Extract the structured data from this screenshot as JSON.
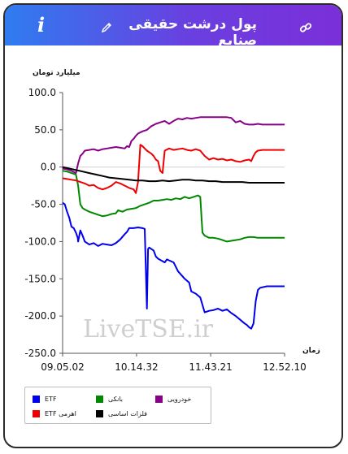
{
  "header": {
    "title": "پول درشت حقیقی صنایع",
    "info_label": "i",
    "edit_icon": "pencil-icon",
    "share_icon": "link-icon"
  },
  "watermark": "LiveTSE.ir",
  "chart_data": {
    "type": "line",
    "ylabel": "میلیارد تومان",
    "xlabel": "زمان",
    "ylim": [
      -250,
      100
    ],
    "yticks": [
      "100.0",
      "50.0",
      "0.0",
      "-50.0",
      "-100.0",
      "-150.0",
      "-200.0",
      "-250.0"
    ],
    "xticks": [
      "09.05.02",
      "10.14.32",
      "11.43.21",
      "12.52.10"
    ],
    "xlim": [
      0,
      100
    ],
    "grid": false,
    "legend_position": "bottom-left",
    "series": [
      {
        "name": "ETF",
        "color": "#0000ee",
        "points": [
          [
            0,
            -48
          ],
          [
            1,
            -50
          ],
          [
            2,
            -60
          ],
          [
            3,
            -68
          ],
          [
            4,
            -80
          ],
          [
            5,
            -82
          ],
          [
            6,
            -88
          ],
          [
            6.8,
            -95
          ],
          [
            7,
            -100
          ],
          [
            8,
            -85
          ],
          [
            9,
            -92
          ],
          [
            10,
            -100
          ],
          [
            12,
            -104
          ],
          [
            14,
            -102
          ],
          [
            16,
            -106
          ],
          [
            18,
            -103
          ],
          [
            20,
            -104
          ],
          [
            22,
            -105
          ],
          [
            24,
            -102
          ],
          [
            26,
            -97
          ],
          [
            28,
            -90
          ],
          [
            29,
            -87
          ],
          [
            30,
            -82
          ],
          [
            32,
            -82
          ],
          [
            34,
            -81
          ],
          [
            36,
            -82
          ],
          [
            37,
            -83
          ],
          [
            38,
            -190
          ],
          [
            38.5,
            -110
          ],
          [
            39,
            -108
          ],
          [
            41,
            -112
          ],
          [
            42,
            -120
          ],
          [
            43,
            -123
          ],
          [
            46,
            -128
          ],
          [
            47,
            -124
          ],
          [
            50,
            -128
          ],
          [
            52,
            -140
          ],
          [
            55,
            -150
          ],
          [
            57,
            -155
          ],
          [
            58,
            -167
          ],
          [
            60,
            -170
          ],
          [
            62,
            -175
          ],
          [
            64,
            -195
          ],
          [
            66,
            -193
          ],
          [
            68,
            -192
          ],
          [
            70,
            -190
          ],
          [
            72,
            -193
          ],
          [
            74,
            -191
          ],
          [
            76,
            -196
          ],
          [
            78,
            -200
          ],
          [
            80,
            -205
          ],
          [
            82,
            -210
          ],
          [
            83,
            -212
          ],
          [
            84,
            -215
          ],
          [
            85,
            -217
          ],
          [
            86,
            -210
          ],
          [
            87,
            -180
          ],
          [
            88,
            -165
          ],
          [
            89,
            -162
          ],
          [
            92,
            -160
          ],
          [
            95,
            -160
          ],
          [
            100,
            -160
          ]
        ]
      },
      {
        "name": "بانکی",
        "color": "#008800",
        "points": [
          [
            0,
            -5
          ],
          [
            2,
            -6
          ],
          [
            4,
            -8
          ],
          [
            6,
            -10
          ],
          [
            7,
            -25
          ],
          [
            8,
            -50
          ],
          [
            9,
            -55
          ],
          [
            10,
            -57
          ],
          [
            12,
            -60
          ],
          [
            14,
            -62
          ],
          [
            16,
            -64
          ],
          [
            18,
            -66
          ],
          [
            20,
            -65
          ],
          [
            22,
            -63
          ],
          [
            24,
            -62
          ],
          [
            25,
            -58
          ],
          [
            27,
            -60
          ],
          [
            29,
            -57
          ],
          [
            31,
            -56
          ],
          [
            33,
            -55
          ],
          [
            35,
            -52
          ],
          [
            37,
            -50
          ],
          [
            39,
            -48
          ],
          [
            41,
            -45
          ],
          [
            43,
            -45
          ],
          [
            45,
            -44
          ],
          [
            47,
            -43
          ],
          [
            49,
            -44
          ],
          [
            51,
            -42
          ],
          [
            53,
            -43
          ],
          [
            55,
            -40
          ],
          [
            57,
            -42
          ],
          [
            59,
            -40
          ],
          [
            61,
            -38
          ],
          [
            62,
            -40
          ],
          [
            63,
            -88
          ],
          [
            64,
            -92
          ],
          [
            66,
            -95
          ],
          [
            68,
            -95
          ],
          [
            70,
            -96
          ],
          [
            72,
            -98
          ],
          [
            74,
            -100
          ],
          [
            76,
            -99
          ],
          [
            78,
            -98
          ],
          [
            80,
            -97
          ],
          [
            82,
            -95
          ],
          [
            84,
            -94
          ],
          [
            86,
            -94
          ],
          [
            88,
            -95
          ],
          [
            90,
            -95
          ],
          [
            100,
            -95
          ]
        ]
      },
      {
        "name": "خودرویی",
        "color": "#880088",
        "points": [
          [
            0,
            -2
          ],
          [
            2,
            -3
          ],
          [
            4,
            -5
          ],
          [
            6,
            -8
          ],
          [
            7,
            5
          ],
          [
            8,
            15
          ],
          [
            9,
            18
          ],
          [
            10,
            22
          ],
          [
            12,
            23
          ],
          [
            14,
            24
          ],
          [
            16,
            22
          ],
          [
            18,
            24
          ],
          [
            20,
            25
          ],
          [
            22,
            26
          ],
          [
            24,
            27
          ],
          [
            26,
            26
          ],
          [
            28,
            25
          ],
          [
            29,
            28
          ],
          [
            30,
            27
          ],
          [
            31,
            35
          ],
          [
            32,
            38
          ],
          [
            33,
            42
          ],
          [
            34,
            45
          ],
          [
            36,
            48
          ],
          [
            38,
            50
          ],
          [
            40,
            55
          ],
          [
            42,
            58
          ],
          [
            44,
            60
          ],
          [
            46,
            62
          ],
          [
            48,
            58
          ],
          [
            50,
            62
          ],
          [
            52,
            65
          ],
          [
            54,
            64
          ],
          [
            56,
            66
          ],
          [
            58,
            65
          ],
          [
            60,
            66
          ],
          [
            62,
            67
          ],
          [
            64,
            67
          ],
          [
            66,
            67
          ],
          [
            68,
            67
          ],
          [
            70,
            67
          ],
          [
            72,
            67
          ],
          [
            74,
            67
          ],
          [
            76,
            66
          ],
          [
            78,
            60
          ],
          [
            80,
            62
          ],
          [
            82,
            58
          ],
          [
            84,
            57
          ],
          [
            86,
            57
          ],
          [
            88,
            58
          ],
          [
            90,
            57
          ],
          [
            100,
            57
          ]
        ]
      },
      {
        "name": "اهرمی ETF",
        "color": "#ee0000",
        "points": [
          [
            0,
            -15
          ],
          [
            2,
            -16
          ],
          [
            4,
            -17
          ],
          [
            6,
            -18
          ],
          [
            8,
            -20
          ],
          [
            10,
            -22
          ],
          [
            12,
            -25
          ],
          [
            14,
            -24
          ],
          [
            16,
            -28
          ],
          [
            18,
            -30
          ],
          [
            20,
            -28
          ],
          [
            22,
            -25
          ],
          [
            24,
            -20
          ],
          [
            26,
            -22
          ],
          [
            28,
            -25
          ],
          [
            30,
            -28
          ],
          [
            32,
            -30
          ],
          [
            33,
            -35
          ],
          [
            34,
            -20
          ],
          [
            35,
            30
          ],
          [
            36,
            28
          ],
          [
            37,
            25
          ],
          [
            38,
            22
          ],
          [
            39,
            20
          ],
          [
            40,
            18
          ],
          [
            41,
            15
          ],
          [
            42,
            10
          ],
          [
            43,
            8
          ],
          [
            44,
            -5
          ],
          [
            45,
            -8
          ],
          [
            46,
            22
          ],
          [
            48,
            25
          ],
          [
            50,
            23
          ],
          [
            52,
            24
          ],
          [
            54,
            25
          ],
          [
            56,
            23
          ],
          [
            58,
            22
          ],
          [
            60,
            24
          ],
          [
            62,
            22
          ],
          [
            64,
            15
          ],
          [
            66,
            10
          ],
          [
            68,
            12
          ],
          [
            70,
            10
          ],
          [
            72,
            11
          ],
          [
            74,
            9
          ],
          [
            76,
            10
          ],
          [
            78,
            8
          ],
          [
            80,
            7
          ],
          [
            82,
            9
          ],
          [
            84,
            10
          ],
          [
            85,
            8
          ],
          [
            86,
            15
          ],
          [
            87,
            20
          ],
          [
            88,
            22
          ],
          [
            90,
            23
          ],
          [
            100,
            23
          ]
        ]
      },
      {
        "name": "فلزات اساسی",
        "color": "#000000",
        "points": [
          [
            0,
            0
          ],
          [
            3,
            -2
          ],
          [
            6,
            -4
          ],
          [
            9,
            -6
          ],
          [
            12,
            -8
          ],
          [
            15,
            -10
          ],
          [
            18,
            -12
          ],
          [
            21,
            -14
          ],
          [
            24,
            -15
          ],
          [
            27,
            -16
          ],
          [
            30,
            -17
          ],
          [
            33,
            -18
          ],
          [
            36,
            -18
          ],
          [
            39,
            -19
          ],
          [
            42,
            -19
          ],
          [
            45,
            -18
          ],
          [
            48,
            -19
          ],
          [
            51,
            -18
          ],
          [
            54,
            -17
          ],
          [
            57,
            -17
          ],
          [
            60,
            -18
          ],
          [
            63,
            -18
          ],
          [
            66,
            -19
          ],
          [
            69,
            -19
          ],
          [
            72,
            -20
          ],
          [
            75,
            -20
          ],
          [
            78,
            -20
          ],
          [
            81,
            -20
          ],
          [
            84,
            -21
          ],
          [
            87,
            -21
          ],
          [
            90,
            -21
          ],
          [
            100,
            -21
          ]
        ]
      }
    ]
  },
  "legend": [
    {
      "label": "ETF",
      "color": "#0000ee"
    },
    {
      "label": "بانکی",
      "color": "#008800"
    },
    {
      "label": "خودرویی",
      "color": "#880088"
    },
    {
      "label": "اهرمی ETF",
      "color": "#ee0000"
    },
    {
      "label": "فلزات اساسی",
      "color": "#000000"
    }
  ]
}
